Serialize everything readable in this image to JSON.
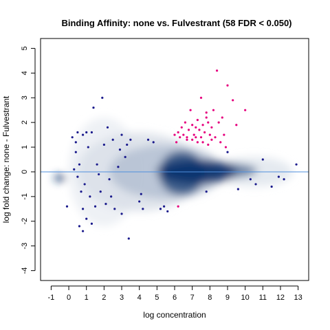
{
  "chart_data": {
    "type": "scatter",
    "title": "Binding Affinity: none vs. Fulvestrant (58 FDR < 0.050)",
    "xlabel": "log concentration",
    "ylabel": "log fold change: none - Fulvestrant",
    "xlim": [
      -1.6,
      13.6
    ],
    "ylim": [
      -4.4,
      5.4
    ],
    "xticks": [
      "-1",
      "0",
      "1",
      "2",
      "3",
      "4",
      "5",
      "6",
      "7",
      "8",
      "9",
      "10",
      "11",
      "12",
      "13"
    ],
    "yticks": [
      "-4",
      "-3",
      "-2",
      "-1",
      "0",
      "1",
      "2",
      "3",
      "4",
      "5"
    ],
    "reference_line_y": 0,
    "colors": {
      "density": "#08306b",
      "significant": "#e6007e",
      "nonsignificant_points": "#1a1a8c",
      "reference_line": "#4f8fdd"
    },
    "density_regions": [
      {
        "cx": 7.3,
        "cy": 0.0,
        "rx": 2.2,
        "ry": 0.5,
        "level": 1.0
      },
      {
        "cx": 6.4,
        "cy": -0.05,
        "rx": 1.3,
        "ry": 0.9,
        "level": 0.85
      },
      {
        "cx": 7.8,
        "cy": 0.05,
        "rx": 2.9,
        "ry": 0.35,
        "level": 0.7
      },
      {
        "cx": 5.5,
        "cy": 0.0,
        "rx": 3.2,
        "ry": 1.1,
        "level": 0.3
      },
      {
        "cx": 4.0,
        "cy": 0.0,
        "rx": 3.5,
        "ry": 1.6,
        "level": 0.15
      },
      {
        "cx": 2.0,
        "cy": 0.0,
        "rx": 2.0,
        "ry": 2.2,
        "level": 0.08
      },
      {
        "cx": 10.5,
        "cy": 0.0,
        "rx": 2.2,
        "ry": 0.6,
        "level": 0.12
      },
      {
        "cx": -0.5,
        "cy": -0.25,
        "rx": 0.35,
        "ry": 0.15,
        "level": 0.9
      }
    ],
    "series": [
      {
        "values": [
          [
            6.0,
            1.5
          ],
          [
            6.2,
            1.6
          ],
          [
            6.3,
            1.4
          ],
          [
            6.5,
            1.5
          ],
          [
            6.6,
            2.0
          ],
          [
            6.7,
            1.3
          ],
          [
            6.8,
            1.7
          ],
          [
            6.9,
            2.5
          ],
          [
            7.0,
            1.3
          ],
          [
            7.0,
            1.9
          ],
          [
            7.1,
            1.5
          ],
          [
            7.2,
            1.8
          ],
          [
            7.3,
            1.2
          ],
          [
            7.3,
            2.1
          ],
          [
            7.4,
            1.7
          ],
          [
            7.5,
            1.4
          ],
          [
            7.5,
            3.0
          ],
          [
            7.6,
            1.9
          ],
          [
            7.7,
            1.6
          ],
          [
            7.8,
            2.2
          ],
          [
            7.9,
            1.1
          ],
          [
            8.0,
            1.5
          ],
          [
            8.1,
            1.8
          ],
          [
            8.2,
            2.5
          ],
          [
            8.3,
            1.4
          ],
          [
            8.4,
            4.1
          ],
          [
            8.5,
            2.0
          ],
          [
            8.6,
            1.2
          ],
          [
            8.7,
            2.2
          ],
          [
            8.8,
            1.5
          ],
          [
            9.0,
            3.5
          ],
          [
            9.3,
            2.9
          ],
          [
            9.5,
            1.9
          ],
          [
            10.0,
            2.5
          ],
          [
            6.4,
            1.8
          ],
          [
            6.1,
            1.2
          ],
          [
            7.6,
            1.2
          ],
          [
            8.9,
            1.0
          ],
          [
            6.2,
            -1.4
          ],
          [
            7.8,
            2.4
          ],
          [
            8.1,
            1.3
          ],
          [
            6.7,
            1.4
          ],
          [
            7.2,
            1.4
          ],
          [
            7.9,
            2.0
          ]
        ]
      },
      {
        "values": [
          [
            0.2,
            1.4
          ],
          [
            0.4,
            1.2
          ],
          [
            0.5,
            1.6
          ],
          [
            0.8,
            1.5
          ],
          [
            1.0,
            1.6
          ],
          [
            1.3,
            1.6
          ],
          [
            0.6,
            0.3
          ],
          [
            0.3,
            0.1
          ],
          [
            0.5,
            -0.2
          ],
          [
            0.9,
            -0.5
          ],
          [
            0.7,
            -0.8
          ],
          [
            1.2,
            -1.0
          ],
          [
            0.8,
            -1.5
          ],
          [
            1.0,
            -1.9
          ],
          [
            0.6,
            -2.2
          ],
          [
            0.8,
            -2.4
          ],
          [
            1.4,
            2.6
          ],
          [
            1.9,
            3.0
          ],
          [
            2.2,
            1.8
          ],
          [
            2.0,
            1.1
          ],
          [
            2.5,
            1.3
          ],
          [
            3.0,
            1.5
          ],
          [
            3.3,
            1.1
          ],
          [
            3.5,
            1.3
          ],
          [
            3.2,
            0.6
          ],
          [
            2.8,
            0.2
          ],
          [
            2.3,
            -0.3
          ],
          [
            1.8,
            -0.8
          ],
          [
            2.1,
            -1.3
          ],
          [
            2.6,
            -1.5
          ],
          [
            3.0,
            -1.7
          ],
          [
            3.4,
            -2.7
          ],
          [
            4.0,
            -1.2
          ],
          [
            4.2,
            -1.5
          ],
          [
            4.5,
            1.3
          ],
          [
            4.8,
            1.2
          ],
          [
            5.2,
            -1.5
          ],
          [
            5.6,
            -1.6
          ],
          [
            7.8,
            -0.8
          ],
          [
            9.6,
            -0.7
          ],
          [
            10.3,
            -0.3
          ],
          [
            10.6,
            -0.5
          ],
          [
            11.0,
            0.5
          ],
          [
            11.5,
            -0.6
          ],
          [
            12.2,
            -0.3
          ],
          [
            12.9,
            0.3
          ],
          [
            -0.1,
            -1.4
          ],
          [
            1.5,
            -1.4
          ],
          [
            1.6,
            0.3
          ],
          [
            2.9,
            0.9
          ],
          [
            0.4,
            0.8
          ],
          [
            1.1,
            1.0
          ],
          [
            1.7,
            -0.1
          ],
          [
            2.4,
            -1.0
          ],
          [
            4.1,
            -0.9
          ],
          [
            5.4,
            -1.4
          ],
          [
            11.9,
            -0.2
          ],
          [
            9.0,
            0.8
          ],
          [
            1.3,
            -2.1
          ]
        ]
      }
    ]
  }
}
